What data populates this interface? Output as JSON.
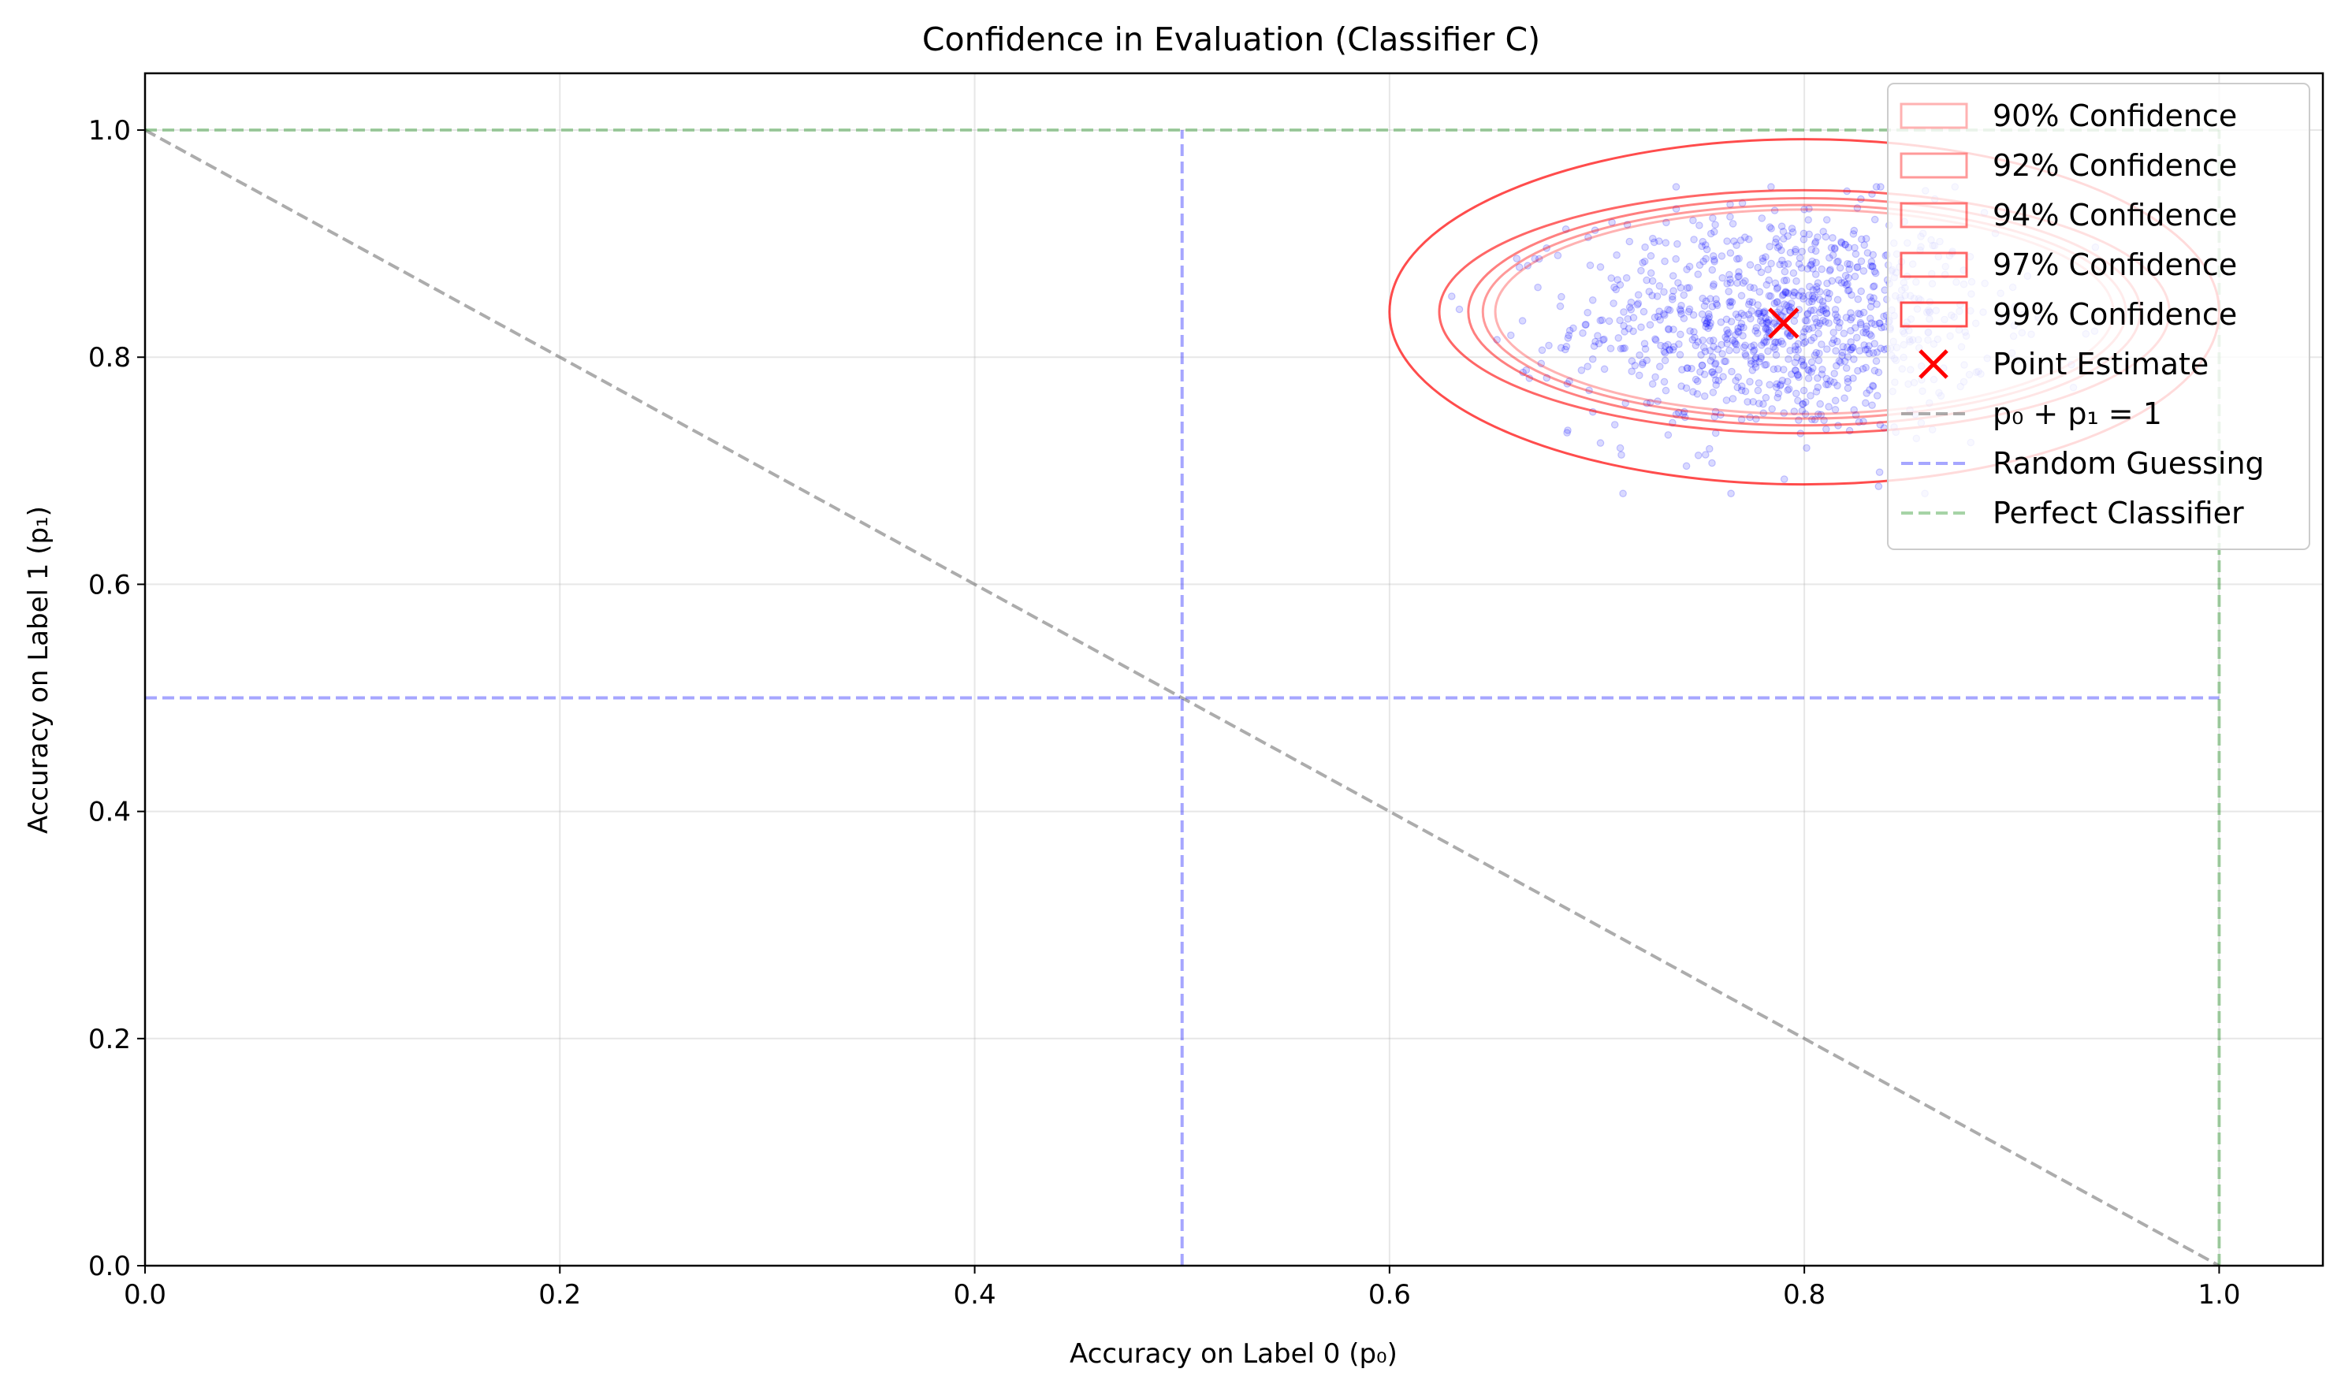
{
  "chart_data": {
    "type": "scatter",
    "title": "Confidence in Evaluation (Classifier C)",
    "xlabel": "Accuracy on Label 0 (p₀)",
    "ylabel": "Accuracy on Label 1 (p₁)",
    "xlim": [
      0.0,
      1.05
    ],
    "ylim": [
      0.0,
      1.05
    ],
    "x_ticks": [
      0.0,
      0.2,
      0.4,
      0.6,
      0.8,
      1.0
    ],
    "y_ticks": [
      0.0,
      0.2,
      0.4,
      0.6,
      0.8,
      1.0
    ],
    "x_tick_labels": [
      "0.0",
      "0.2",
      "0.4",
      "0.6",
      "0.8",
      "1.0"
    ],
    "y_tick_labels": [
      "0.0",
      "0.2",
      "0.4",
      "0.6",
      "0.8",
      "1.0"
    ],
    "grid": true,
    "legend_position": "top-right",
    "point_estimate": {
      "x": 0.79,
      "y": 0.83,
      "label": "Point Estimate",
      "color": "#ff0000"
    },
    "bootstrap_samples": {
      "color": "#0000ff",
      "count": 1000,
      "center": [
        0.79,
        0.83
      ],
      "std": [
        0.05,
        0.05
      ],
      "x_range": [
        0.63,
        0.98
      ],
      "y_range": [
        0.68,
        0.95
      ]
    },
    "confidence_ellipses": [
      {
        "label": "90% Confidence",
        "cx": 0.8,
        "cy": 0.84,
        "rx": 0.149,
        "ry": 0.09,
        "opacity": 0.3
      },
      {
        "label": "92% Confidence",
        "cx": 0.8,
        "cy": 0.84,
        "rx": 0.155,
        "ry": 0.094,
        "opacity": 0.4
      },
      {
        "label": "94% Confidence",
        "cx": 0.8,
        "cy": 0.84,
        "rx": 0.162,
        "ry": 0.1,
        "opacity": 0.5
      },
      {
        "label": "97% Confidence",
        "cx": 0.8,
        "cy": 0.84,
        "rx": 0.176,
        "ry": 0.107,
        "opacity": 0.6
      },
      {
        "label": "99% Confidence",
        "cx": 0.8,
        "cy": 0.84,
        "rx": 0.2,
        "ry": 0.152,
        "opacity": 0.7
      }
    ],
    "reference_lines": [
      {
        "label": "p₀ + p₁ = 1",
        "color": "#808080",
        "opacity": 0.65,
        "segments": [
          [
            [
              0.0,
              1.0
            ],
            [
              1.0,
              0.0
            ]
          ]
        ]
      },
      {
        "label": "Random Guessing",
        "color": "#0000ff",
        "opacity": 0.35,
        "segments": [
          [
            [
              0.5,
              0.0
            ],
            [
              0.5,
              1.0
            ]
          ],
          [
            [
              0.0,
              0.5
            ],
            [
              1.0,
              0.5
            ]
          ]
        ]
      },
      {
        "label": "Perfect Classifier",
        "color": "#008000",
        "opacity": 0.35,
        "segments": [
          [
            [
              1.0,
              0.0
            ],
            [
              1.0,
              1.0
            ]
          ],
          [
            [
              0.0,
              1.0
            ],
            [
              1.0,
              1.0
            ]
          ]
        ]
      }
    ],
    "ellipse_color": "#ff0000"
  }
}
